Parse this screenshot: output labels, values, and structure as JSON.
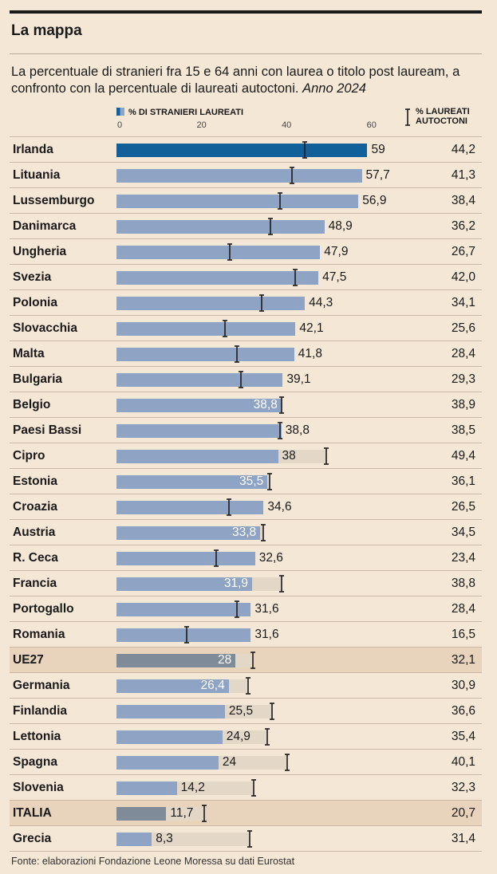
{
  "header": {
    "title": "La mappa",
    "subtitle": "La percentuale di stranieri fra 15 e 64 anni con laurea o titolo post lauream, a confronto con la percentuale di laureati autoctoni.",
    "subtitle_year": "Anno 2024"
  },
  "legend": {
    "foreign_label": "% DI STRANIERI LAUREATI",
    "native_label_line1": "% LAUREATI",
    "native_label_line2": "AUTOCTONI"
  },
  "colors": {
    "bar": "#8fa3c4",
    "bar_first": "#11609a",
    "bar_aggregate": "#808b99",
    "bar_background": "#e3d7c8",
    "highlight_row": "#e8d4bd",
    "marker": "#1a1a1a"
  },
  "footer": {
    "source": "Fonte: elaborazioni Fondazione Leone Moressa su dati Eurostat"
  },
  "chart_data": {
    "type": "bar",
    "orientation": "horizontal",
    "xlim": [
      0,
      60
    ],
    "xticks": [
      "0",
      "20",
      "40",
      "60"
    ],
    "series": [
      {
        "name": "% di stranieri laureati",
        "key": "foreign"
      },
      {
        "name": "% laureati autoctoni",
        "key": "native",
        "style": "marker"
      }
    ],
    "rows": [
      {
        "country": "Irlanda",
        "foreign": 59,
        "foreign_label": "59",
        "native": 44.2,
        "native_label": "44,2"
      },
      {
        "country": "Lituania",
        "foreign": 57.7,
        "foreign_label": "57,7",
        "native": 41.3,
        "native_label": "41,3"
      },
      {
        "country": "Lussemburgo",
        "foreign": 56.9,
        "foreign_label": "56,9",
        "native": 38.4,
        "native_label": "38,4"
      },
      {
        "country": "Danimarca",
        "foreign": 48.9,
        "foreign_label": "48,9",
        "native": 36.2,
        "native_label": "36,2"
      },
      {
        "country": "Ungheria",
        "foreign": 47.9,
        "foreign_label": "47,9",
        "native": 26.7,
        "native_label": "26,7"
      },
      {
        "country": "Svezia",
        "foreign": 47.5,
        "foreign_label": "47,5",
        "native": 42.0,
        "native_label": "42,0"
      },
      {
        "country": "Polonia",
        "foreign": 44.3,
        "foreign_label": "44,3",
        "native": 34.1,
        "native_label": "34,1"
      },
      {
        "country": "Slovacchia",
        "foreign": 42.1,
        "foreign_label": "42,1",
        "native": 25.6,
        "native_label": "25,6"
      },
      {
        "country": "Malta",
        "foreign": 41.8,
        "foreign_label": "41,8",
        "native": 28.4,
        "native_label": "28,4"
      },
      {
        "country": "Bulgaria",
        "foreign": 39.1,
        "foreign_label": "39,1",
        "native": 29.3,
        "native_label": "29,3"
      },
      {
        "country": "Belgio",
        "foreign": 38.8,
        "foreign_label": "38,8",
        "native": 38.9,
        "native_label": "38,9"
      },
      {
        "country": "Paesi Bassi",
        "foreign": 38.8,
        "foreign_label": "38,8",
        "native": 38.5,
        "native_label": "38,5"
      },
      {
        "country": "Cipro",
        "foreign": 38,
        "foreign_label": "38",
        "native": 49.4,
        "native_label": "49,4"
      },
      {
        "country": "Estonia",
        "foreign": 35.5,
        "foreign_label": "35,5",
        "native": 36.1,
        "native_label": "36,1"
      },
      {
        "country": "Croazia",
        "foreign": 34.6,
        "foreign_label": "34,6",
        "native": 26.5,
        "native_label": "26,5"
      },
      {
        "country": "Austria",
        "foreign": 33.8,
        "foreign_label": "33,8",
        "native": 34.5,
        "native_label": "34,5"
      },
      {
        "country": "R. Ceca",
        "foreign": 32.6,
        "foreign_label": "32,6",
        "native": 23.4,
        "native_label": "23,4"
      },
      {
        "country": "Francia",
        "foreign": 31.9,
        "foreign_label": "31,9",
        "native": 38.8,
        "native_label": "38,8"
      },
      {
        "country": "Portogallo",
        "foreign": 31.6,
        "foreign_label": "31,6",
        "native": 28.4,
        "native_label": "28,4"
      },
      {
        "country": "Romania",
        "foreign": 31.6,
        "foreign_label": "31,6",
        "native": 16.5,
        "native_label": "16,5"
      },
      {
        "country": "UE27",
        "foreign": 28,
        "foreign_label": "28",
        "native": 32.1,
        "native_label": "32,1",
        "highlight": true
      },
      {
        "country": "Germania",
        "foreign": 26.4,
        "foreign_label": "26,4",
        "native": 30.9,
        "native_label": "30,9"
      },
      {
        "country": "Finlandia",
        "foreign": 25.5,
        "foreign_label": "25,5",
        "native": 36.6,
        "native_label": "36,6"
      },
      {
        "country": "Lettonia",
        "foreign": 24.9,
        "foreign_label": "24,9",
        "native": 35.4,
        "native_label": "35,4"
      },
      {
        "country": "Spagna",
        "foreign": 24,
        "foreign_label": "24",
        "native": 40.1,
        "native_label": "40,1"
      },
      {
        "country": "Slovenia",
        "foreign": 14.2,
        "foreign_label": "14,2",
        "native": 32.3,
        "native_label": "32,3"
      },
      {
        "country": "ITALIA",
        "foreign": 11.7,
        "foreign_label": "11,7",
        "native": 20.7,
        "native_label": "20,7",
        "highlight": true
      },
      {
        "country": "Grecia",
        "foreign": 8.3,
        "foreign_label": "8,3",
        "native": 31.4,
        "native_label": "31,4"
      }
    ]
  }
}
